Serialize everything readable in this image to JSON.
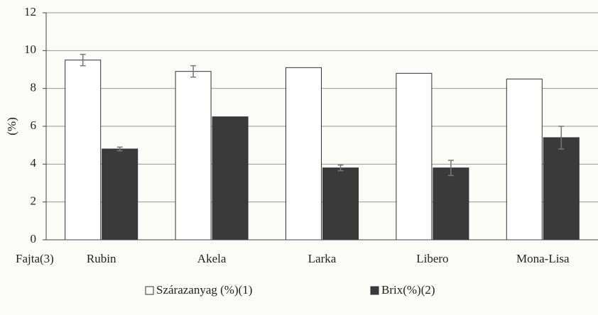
{
  "chart_data": {
    "type": "bar",
    "y_label": "(%)",
    "x_label": "Fajta(3)",
    "categories": [
      "Rubin",
      "Akela",
      "Larka",
      "Libero",
      "Mona-Lisa"
    ],
    "series": [
      {
        "name": "Szárazanyag (%)(1)",
        "color": "#ffffff",
        "values": [
          9.5,
          8.9,
          9.1,
          8.8,
          8.5
        ],
        "errors": [
          0.3,
          0.3,
          0,
          0,
          0
        ]
      },
      {
        "name": "Brix(%)(2)",
        "color": "#3a3a3a",
        "values": [
          4.8,
          6.5,
          3.8,
          3.8,
          5.4
        ],
        "errors": [
          0.1,
          0,
          0.15,
          0.4,
          0.6
        ]
      }
    ],
    "ylim": [
      0,
      12
    ],
    "yticks": [
      0,
      2,
      4,
      6,
      8,
      10,
      12
    ],
    "grid": true
  }
}
